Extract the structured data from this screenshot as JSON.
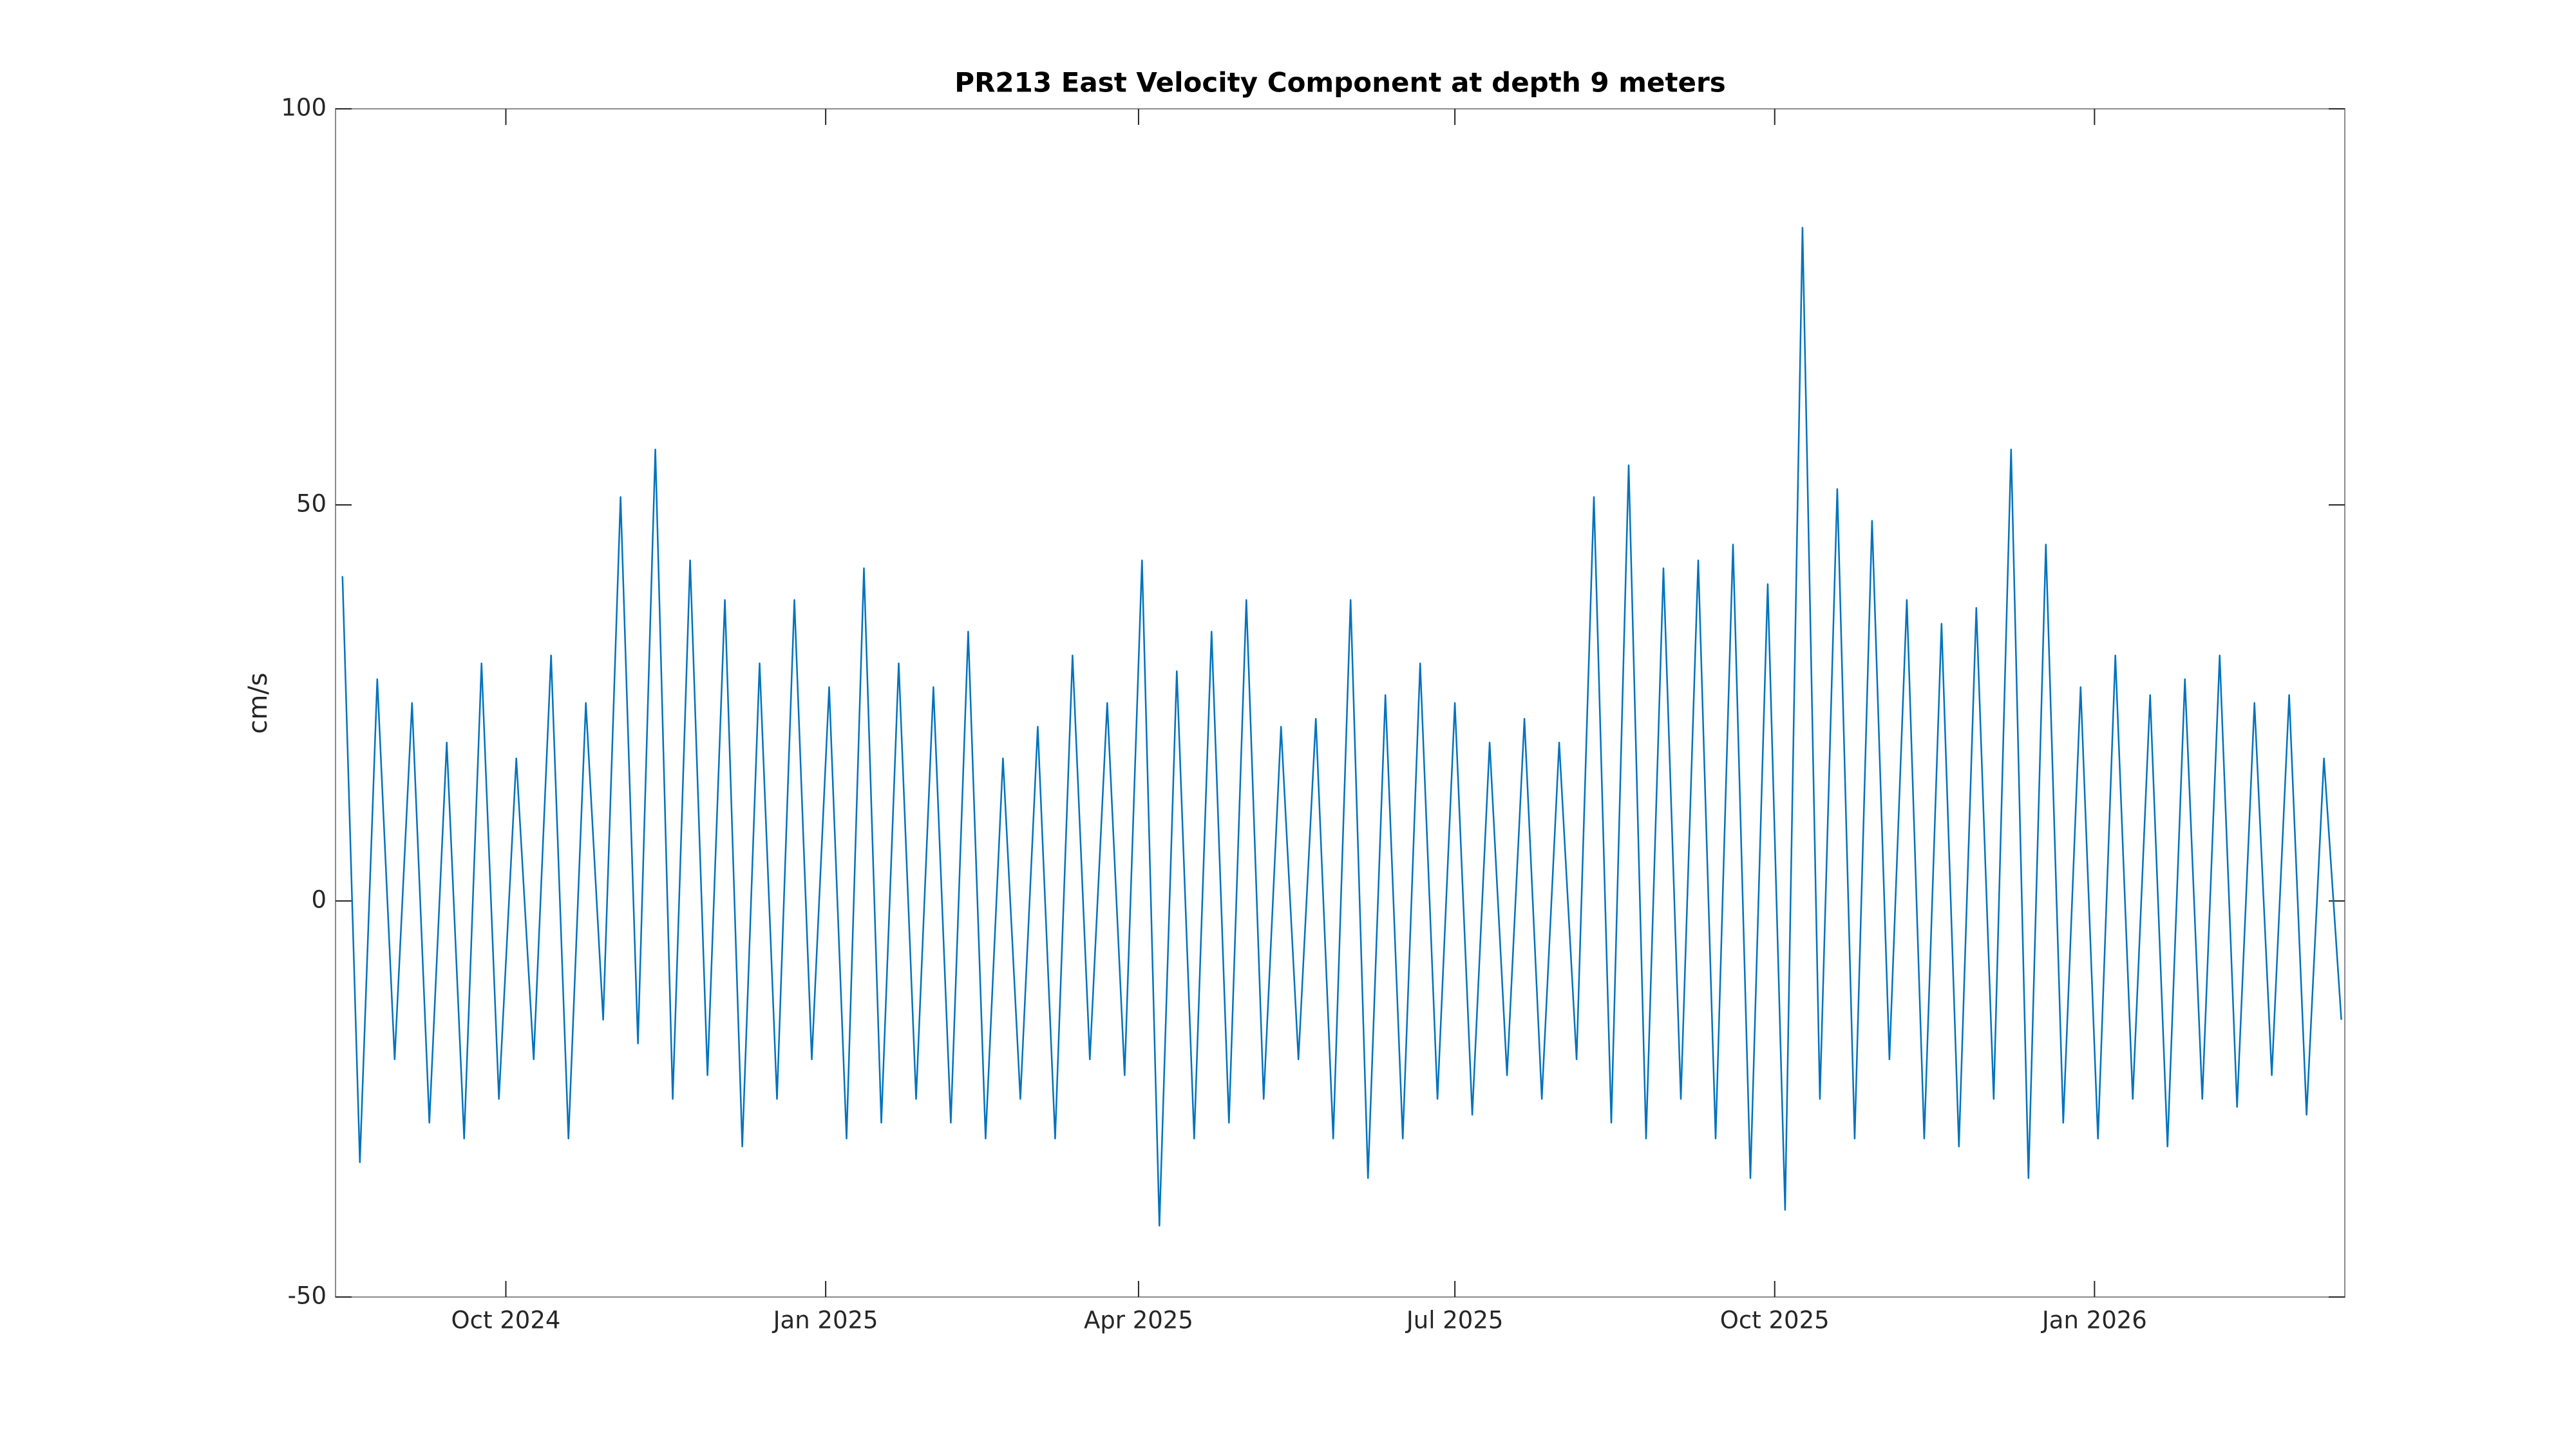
{
  "chart_data": {
    "type": "line",
    "title": "PR213 East Velocity Component at depth 9 meters",
    "ylabel": "cm/s",
    "color": "#0072bd",
    "xlim": [
      "2024-08-13",
      "2026-03-14"
    ],
    "xticks": [
      {
        "value": "2024-10-01",
        "label": "Oct 2024"
      },
      {
        "value": "2025-01-01",
        "label": "Jan 2025"
      },
      {
        "value": "2025-04-01",
        "label": "Apr 2025"
      },
      {
        "value": "2025-07-01",
        "label": "Jul 2025"
      },
      {
        "value": "2025-10-01",
        "label": "Oct 2025"
      },
      {
        "value": "2026-01-01",
        "label": "Jan 2026"
      }
    ],
    "ylim": [
      -50,
      100
    ],
    "yticks": [
      -50,
      0,
      50,
      100
    ],
    "grid": false,
    "x": [
      "2024-08-15",
      "2024-08-20",
      "2024-08-25",
      "2024-08-30",
      "2024-09-04",
      "2024-09-09",
      "2024-09-14",
      "2024-09-19",
      "2024-09-24",
      "2024-09-29",
      "2024-10-04",
      "2024-10-09",
      "2024-10-14",
      "2024-10-19",
      "2024-10-24",
      "2024-10-29",
      "2024-11-03",
      "2024-11-08",
      "2024-11-13",
      "2024-11-18",
      "2024-11-23",
      "2024-11-28",
      "2024-12-03",
      "2024-12-08",
      "2024-12-13",
      "2024-12-18",
      "2024-12-23",
      "2024-12-28",
      "2025-01-02",
      "2025-01-07",
      "2025-01-12",
      "2025-01-17",
      "2025-01-22",
      "2025-01-27",
      "2025-02-01",
      "2025-02-06",
      "2025-02-11",
      "2025-02-16",
      "2025-02-21",
      "2025-02-26",
      "2025-03-03",
      "2025-03-08",
      "2025-03-13",
      "2025-03-18",
      "2025-03-23",
      "2025-03-28",
      "2025-04-02",
      "2025-04-07",
      "2025-04-12",
      "2025-04-17",
      "2025-04-22",
      "2025-04-27",
      "2025-05-02",
      "2025-05-07",
      "2025-05-12",
      "2025-05-17",
      "2025-05-22",
      "2025-05-27",
      "2025-06-01",
      "2025-06-06",
      "2025-06-11",
      "2025-06-16",
      "2025-06-21",
      "2025-06-26",
      "2025-07-01",
      "2025-07-06",
      "2025-07-11",
      "2025-07-16",
      "2025-07-21",
      "2025-07-26",
      "2025-07-31",
      "2025-08-05",
      "2025-08-10",
      "2025-08-15",
      "2025-08-20",
      "2025-08-25",
      "2025-08-30",
      "2025-09-04",
      "2025-09-09",
      "2025-09-14",
      "2025-09-19",
      "2025-09-24",
      "2025-09-29",
      "2025-10-04",
      "2025-10-09",
      "2025-10-14",
      "2025-10-19",
      "2025-10-24",
      "2025-10-29",
      "2025-11-03",
      "2025-11-08",
      "2025-11-13",
      "2025-11-18",
      "2025-11-23",
      "2025-11-28",
      "2025-12-03",
      "2025-12-08",
      "2025-12-13",
      "2025-12-18",
      "2025-12-23",
      "2025-12-28",
      "2026-01-02",
      "2026-01-07",
      "2026-01-12",
      "2026-01-17",
      "2026-01-22",
      "2026-01-27",
      "2026-02-01",
      "2026-02-06",
      "2026-02-11",
      "2026-02-16",
      "2026-02-21",
      "2026-02-26",
      "2026-03-03",
      "2026-03-08",
      "2026-03-13"
    ],
    "values": [
      41,
      -33,
      28,
      -20,
      25,
      -28,
      20,
      -30,
      30,
      -25,
      18,
      -20,
      31,
      -30,
      25,
      -15,
      51,
      -18,
      57,
      -25,
      43,
      -22,
      38,
      -31,
      30,
      -25,
      38,
      -20,
      27,
      -30,
      42,
      -28,
      30,
      -25,
      27,
      -28,
      34,
      -30,
      18,
      -25,
      22,
      -30,
      31,
      -20,
      25,
      -22,
      43,
      -41,
      29,
      -30,
      34,
      -28,
      38,
      -25,
      22,
      -20,
      23,
      -30,
      38,
      -35,
      26,
      -30,
      30,
      -25,
      25,
      -27,
      20,
      -22,
      23,
      -25,
      20,
      -20,
      51,
      -28,
      55,
      -30,
      42,
      -25,
      43,
      -30,
      45,
      -35,
      40,
      -39,
      85,
      -25,
      52,
      -30,
      48,
      -20,
      38,
      -30,
      35,
      -31,
      37,
      -25,
      57,
      -35,
      45,
      -28,
      27,
      -30,
      31,
      -25,
      26,
      -31,
      28,
      -25,
      31,
      -26,
      25,
      -22,
      26,
      -27,
      18,
      -15
    ]
  }
}
